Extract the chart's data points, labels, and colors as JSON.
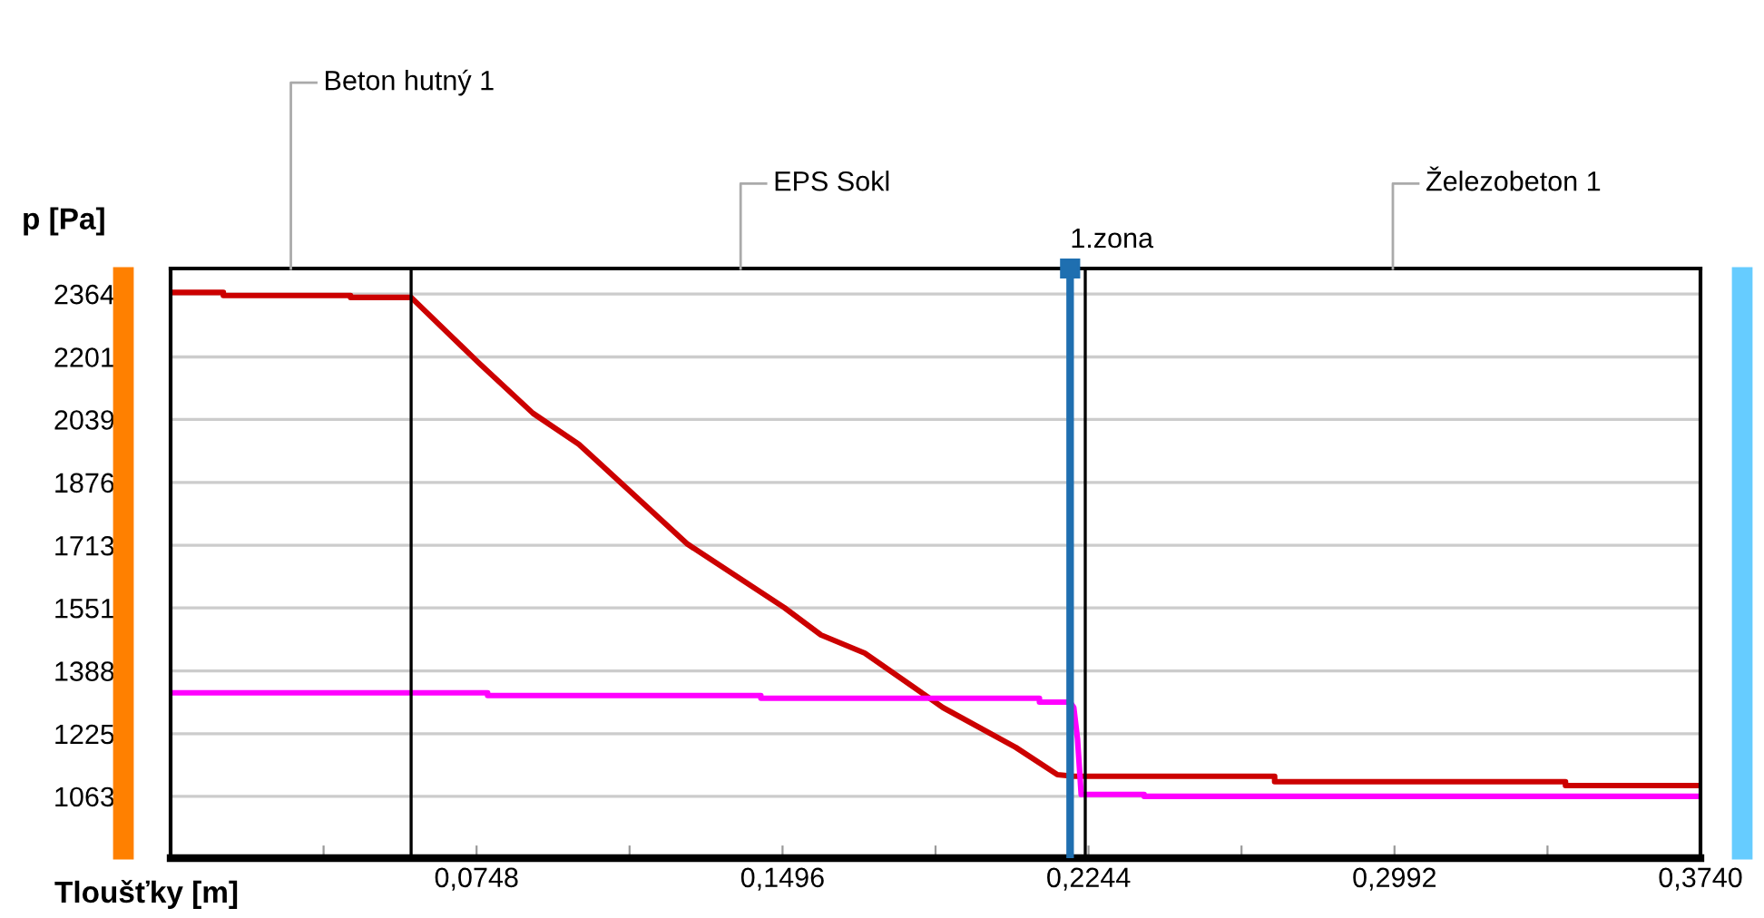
{
  "chart_data": {
    "type": "line",
    "xlabel": "Tloušťky [m]",
    "ylabel": "p [Pa]",
    "xlim": [
      0,
      0.374
    ],
    "ylim": [
      903,
      2430
    ],
    "xticks": [
      {
        "value": 0.0374,
        "label": null
      },
      {
        "value": 0.0748,
        "label": "0,0748"
      },
      {
        "value": 0.1122,
        "label": null
      },
      {
        "value": 0.1496,
        "label": "0,1496"
      },
      {
        "value": 0.187,
        "label": null
      },
      {
        "value": 0.2244,
        "label": "0,2244"
      },
      {
        "value": 0.2618,
        "label": null
      },
      {
        "value": 0.2992,
        "label": "0,2992"
      },
      {
        "value": 0.3366,
        "label": null
      },
      {
        "value": 0.374,
        "label": "0,3740"
      }
    ],
    "yticks": [
      1063,
      1225,
      1388,
      1551,
      1713,
      1876,
      2039,
      2201,
      2364
    ],
    "grid": "y",
    "marker": "none",
    "line_style": "solid",
    "series": [
      {
        "color": "#cc0000",
        "x": [
          0,
          0.0129,
          0.0129,
          0.044,
          0.044,
          0.0588,
          0.0753,
          0.0886,
          0.0998,
          0.1264,
          0.15,
          0.159,
          0.1697,
          0.1888,
          0.2066,
          0.2168,
          0.2208,
          0.2699,
          0.2699,
          0.341,
          0.341,
          0.374
        ],
        "values": [
          2368,
          2368,
          2360,
          2360,
          2355,
          2355,
          2186,
          2055,
          1975,
          1716,
          1552,
          1481,
          1434,
          1293,
          1190,
          1119,
          1115,
          1115,
          1101,
          1101,
          1091,
          1091
        ]
      },
      {
        "color": "#ff00ff",
        "x": [
          0,
          0.0775,
          0.0775,
          0.1443,
          0.1443,
          0.2124,
          0.2124,
          0.2199,
          0.2208,
          0.2217,
          0.2226,
          0.238,
          0.238,
          0.374
        ],
        "values": [
          1331,
          1331,
          1324,
          1324,
          1317,
          1317,
          1307,
          1307,
          1293,
          1213,
          1068,
          1068,
          1063,
          1063
        ]
      }
    ],
    "ref_lines": [
      {
        "axis": "x",
        "value": 0.0588,
        "color": "#000000"
      },
      {
        "axis": "x",
        "value": 0.2236,
        "color": "#000000"
      },
      {
        "axis": "x",
        "value": 0.2199,
        "label": "1.zona",
        "color": "#1f6fb0"
      }
    ],
    "annotations": [
      "Beton hutný 1",
      "EPS Sokl",
      "Železobeton 1"
    ]
  }
}
